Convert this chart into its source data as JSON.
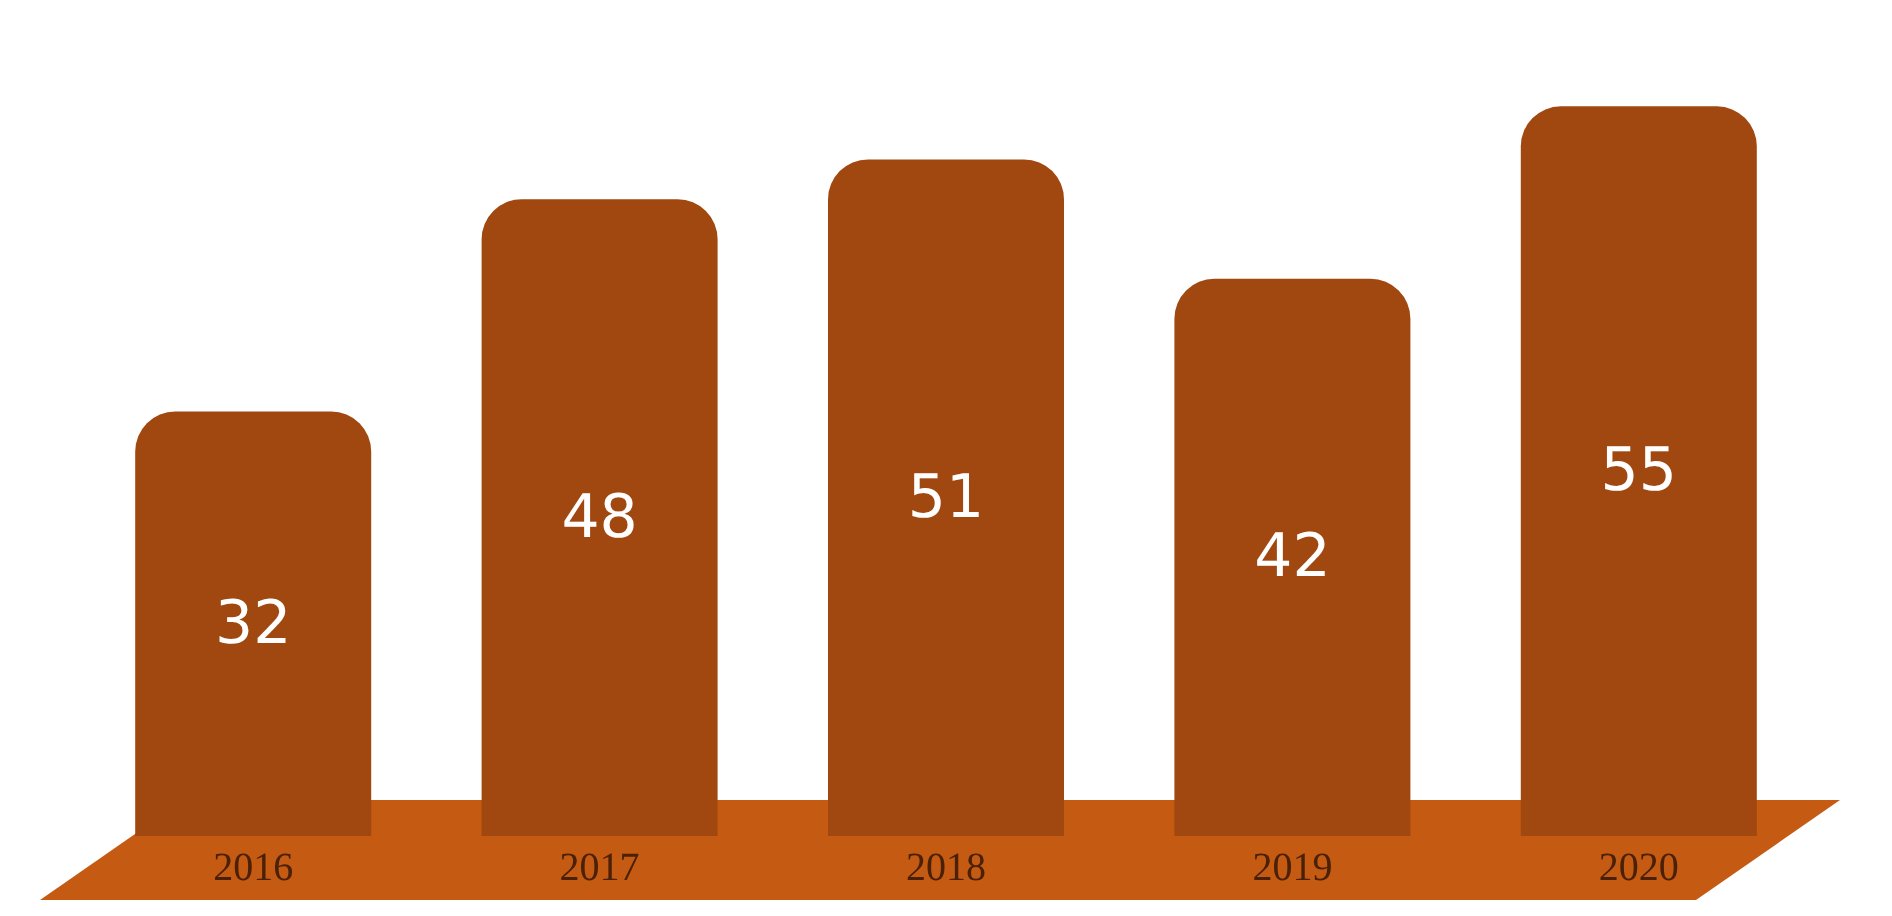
{
  "chart_data": {
    "type": "bar",
    "categories": [
      "2016",
      "2017",
      "2018",
      "2019",
      "2020"
    ],
    "values": [
      32,
      48,
      51,
      42,
      55
    ],
    "color": "#a0480f",
    "data_labels": true,
    "grid": false
  }
}
